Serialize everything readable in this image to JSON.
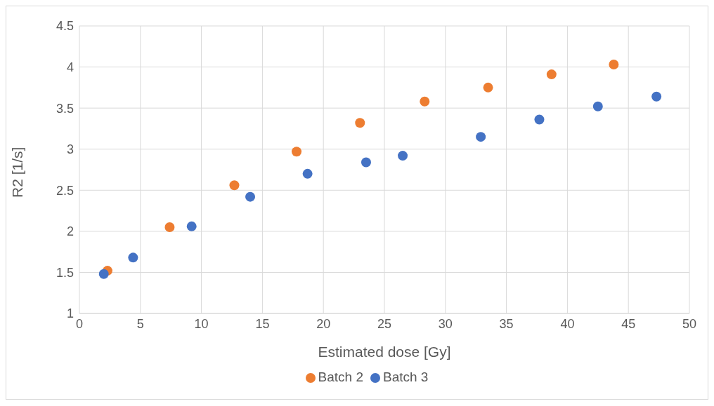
{
  "chart_data": {
    "type": "scatter",
    "xlabel": "Estimated dose [Gy]",
    "ylabel": "R2 [1/s]",
    "xlim": [
      0,
      50
    ],
    "xticks": [
      0,
      5,
      10,
      15,
      20,
      25,
      30,
      35,
      40,
      45,
      50
    ],
    "ylim": [
      1,
      4.5
    ],
    "yticks": [
      1,
      1.5,
      2,
      2.5,
      3,
      3.5,
      4,
      4.5
    ],
    "grid": true,
    "legend": "bottom",
    "marker": "circle",
    "series": [
      {
        "name": "Batch 2",
        "color": "#ed7d31",
        "x": [
          2.3,
          7.4,
          12.7,
          17.8,
          23.0,
          28.3,
          33.5,
          38.7,
          43.8
        ],
        "values": [
          1.52,
          2.05,
          2.56,
          2.97,
          3.32,
          3.58,
          3.75,
          3.91,
          4.03
        ]
      },
      {
        "name": "Batch 3",
        "color": "#4472c4",
        "x": [
          2.0,
          4.4,
          9.2,
          14.0,
          18.7,
          23.5,
          26.5,
          32.9,
          37.7,
          42.5,
          47.3
        ],
        "values": [
          1.48,
          1.68,
          2.06,
          2.42,
          2.7,
          2.84,
          2.92,
          3.15,
          3.36,
          3.52,
          3.64
        ]
      }
    ]
  }
}
